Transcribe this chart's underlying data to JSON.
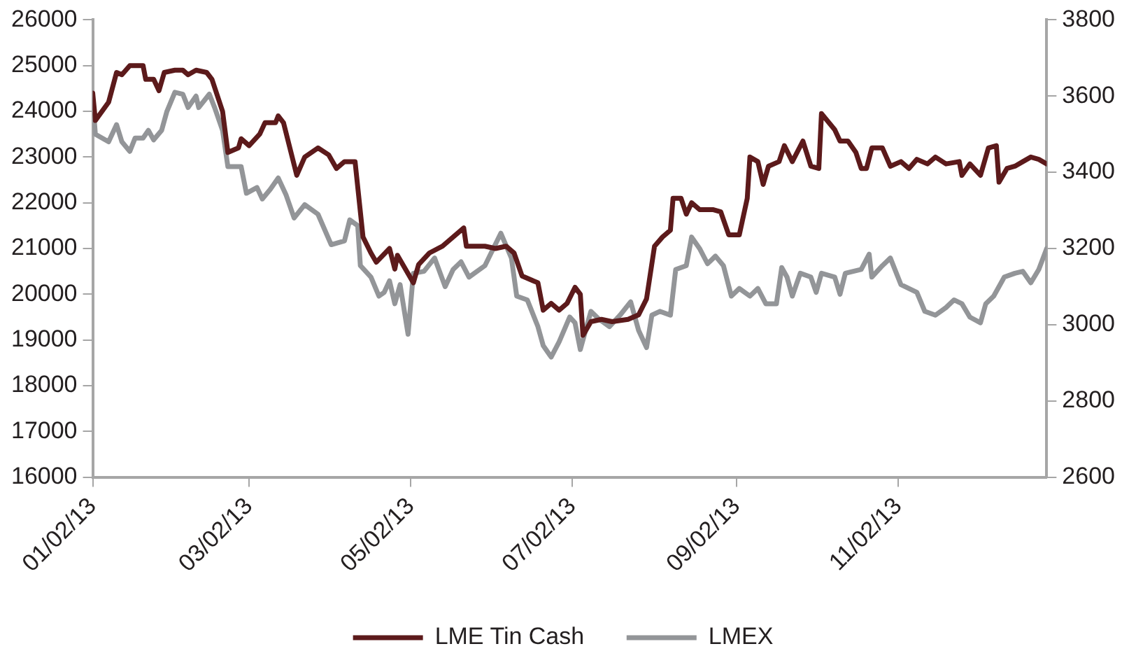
{
  "chart_data": {
    "type": "line",
    "xlim": [
      "2013-01-02",
      "2013-12-28"
    ],
    "xticks": [
      {
        "value": "2013-01-02",
        "label": "01/02/13"
      },
      {
        "value": "2013-03-02",
        "label": "03/02/13"
      },
      {
        "value": "2013-05-02",
        "label": "05/02/13"
      },
      {
        "value": "2013-07-02",
        "label": "07/02/13"
      },
      {
        "value": "2013-09-02",
        "label": "09/02/13"
      },
      {
        "value": "2013-11-02",
        "label": "11/02/13"
      }
    ],
    "ylim": [
      16000,
      26000
    ],
    "yticks": [
      16000,
      17000,
      18000,
      19000,
      20000,
      21000,
      22000,
      23000,
      24000,
      25000,
      26000
    ],
    "y2lim": [
      2600,
      3800
    ],
    "y2ticks": [
      2600,
      2800,
      3000,
      3200,
      3400,
      3600,
      3800
    ],
    "grid": false,
    "legend": "bottom",
    "marker": "none",
    "line_style": "solid",
    "series": [
      {
        "name": "LME Tin Cash",
        "color": "#5c1a1b",
        "x": [
          "2013-01-02",
          "2013-01-03",
          "2013-01-08",
          "2013-01-11",
          "2013-01-13",
          "2013-01-16",
          "2013-01-21",
          "2013-01-22",
          "2013-01-25",
          "2013-01-27",
          "2013-01-29",
          "2013-02-02",
          "2013-02-05",
          "2013-02-07",
          "2013-02-10",
          "2013-02-14",
          "2013-02-16",
          "2013-02-20",
          "2013-02-22",
          "2013-02-26",
          "2013-02-27",
          "2013-03-02",
          "2013-03-06",
          "2013-03-08",
          "2013-03-12",
          "2013-03-13",
          "2013-03-15",
          "2013-03-20",
          "2013-03-23",
          "2013-03-28",
          "2013-04-01",
          "2013-04-04",
          "2013-04-07",
          "2013-04-11",
          "2013-04-14",
          "2013-04-17",
          "2013-04-19",
          "2013-04-24",
          "2013-04-26",
          "2013-04-27",
          "2013-05-03",
          "2013-05-05",
          "2013-05-09",
          "2013-05-14",
          "2013-05-18",
          "2013-05-22",
          "2013-05-23",
          "2013-05-30",
          "2013-06-03",
          "2013-06-07",
          "2013-06-10",
          "2013-06-13",
          "2013-06-19",
          "2013-06-21",
          "2013-06-24",
          "2013-06-27",
          "2013-06-30",
          "2013-07-03",
          "2013-07-05",
          "2013-07-06",
          "2013-07-09",
          "2013-07-13",
          "2013-07-17",
          "2013-07-23",
          "2013-07-27",
          "2013-07-30",
          "2013-08-02",
          "2013-08-05",
          "2013-08-08",
          "2013-08-09",
          "2013-08-12",
          "2013-08-14",
          "2013-08-16",
          "2013-08-19",
          "2013-08-24",
          "2013-08-27",
          "2013-08-30",
          "2013-09-03",
          "2013-09-06",
          "2013-09-07",
          "2013-09-10",
          "2013-09-12",
          "2013-09-14",
          "2013-09-18",
          "2013-09-20",
          "2013-09-23",
          "2013-09-27",
          "2013-09-30",
          "2013-10-03",
          "2013-10-04",
          "2013-10-09",
          "2013-10-11",
          "2013-10-14",
          "2013-10-17",
          "2013-10-19",
          "2013-10-21",
          "2013-10-23",
          "2013-10-27",
          "2013-10-30",
          "2013-11-03",
          "2013-11-06",
          "2013-11-09",
          "2013-11-13",
          "2013-11-16",
          "2013-11-20",
          "2013-11-25",
          "2013-11-26",
          "2013-11-29",
          "2013-12-03",
          "2013-12-06",
          "2013-12-09",
          "2013-12-10",
          "2013-12-13",
          "2013-12-16",
          "2013-12-19",
          "2013-12-22",
          "2013-12-25",
          "2013-12-28"
        ],
        "values": [
          24400,
          23800,
          24200,
          24850,
          24800,
          25000,
          25000,
          24700,
          24700,
          24450,
          24850,
          24900,
          24900,
          24800,
          24900,
          24850,
          24700,
          24000,
          23100,
          23200,
          23400,
          23250,
          23500,
          23750,
          23750,
          23900,
          23750,
          22600,
          23000,
          23200,
          23050,
          22750,
          22900,
          22900,
          21250,
          20900,
          20700,
          21000,
          20550,
          20850,
          20250,
          20650,
          20900,
          21050,
          21250,
          21450,
          21050,
          21050,
          21000,
          21050,
          20900,
          20400,
          20250,
          19650,
          19800,
          19650,
          19800,
          20150,
          20000,
          19100,
          19400,
          19450,
          19400,
          19450,
          19550,
          19900,
          21050,
          21250,
          21400,
          22100,
          22100,
          21750,
          22000,
          21850,
          21850,
          21800,
          21300,
          21300,
          22100,
          23000,
          22900,
          22400,
          22800,
          22900,
          23250,
          22900,
          23350,
          22800,
          22750,
          23950,
          23600,
          23350,
          23350,
          23100,
          22750,
          22750,
          23200,
          23200,
          22800,
          22900,
          22750,
          22950,
          22850,
          23000,
          22850,
          22900,
          22600,
          22850,
          22600,
          23200,
          23250,
          22450,
          22750,
          22800,
          22900,
          23000,
          22950,
          22850
        ]
      },
      {
        "name": "LMEX",
        "color": "#939598",
        "axis": "y2",
        "x": [
          "2013-01-02",
          "2013-01-03",
          "2013-01-08",
          "2013-01-11",
          "2013-01-13",
          "2013-01-16",
          "2013-01-18",
          "2013-01-21",
          "2013-01-23",
          "2013-01-25",
          "2013-01-28",
          "2013-01-30",
          "2013-02-02",
          "2013-02-05",
          "2013-02-07",
          "2013-02-10",
          "2013-02-11",
          "2013-02-15",
          "2013-02-17",
          "2013-02-20",
          "2013-02-22",
          "2013-02-27",
          "2013-03-01",
          "2013-03-05",
          "2013-03-07",
          "2013-03-10",
          "2013-03-13",
          "2013-03-16",
          "2013-03-19",
          "2013-03-23",
          "2013-03-28",
          "2013-04-02",
          "2013-04-07",
          "2013-04-09",
          "2013-04-12",
          "2013-04-13",
          "2013-04-17",
          "2013-04-20",
          "2013-04-22",
          "2013-04-24",
          "2013-04-26",
          "2013-04-28",
          "2013-05-01",
          "2013-05-03",
          "2013-05-07",
          "2013-05-11",
          "2013-05-15",
          "2013-05-18",
          "2013-05-21",
          "2013-05-24",
          "2013-05-30",
          "2013-06-05",
          "2013-06-09",
          "2013-06-11",
          "2013-06-15",
          "2013-06-19",
          "2013-06-21",
          "2013-06-24",
          "2013-06-27",
          "2013-07-01",
          "2013-07-03",
          "2013-07-05",
          "2013-07-09",
          "2013-07-12",
          "2013-07-16",
          "2013-07-20",
          "2013-07-24",
          "2013-07-27",
          "2013-07-30",
          "2013-08-01",
          "2013-08-04",
          "2013-08-08",
          "2013-08-10",
          "2013-08-14",
          "2013-08-16",
          "2013-08-19",
          "2013-08-22",
          "2013-08-25",
          "2013-08-28",
          "2013-08-31",
          "2013-09-03",
          "2013-09-07",
          "2013-09-10",
          "2013-09-13",
          "2013-09-17",
          "2013-09-19",
          "2013-09-21",
          "2013-09-23",
          "2013-09-26",
          "2013-09-30",
          "2013-10-02",
          "2013-10-04",
          "2013-10-09",
          "2013-10-11",
          "2013-10-13",
          "2013-10-19",
          "2013-10-22",
          "2013-10-23",
          "2013-10-27",
          "2013-10-30",
          "2013-11-03",
          "2013-11-09",
          "2013-11-12",
          "2013-11-16",
          "2013-11-20",
          "2013-11-23",
          "2013-11-26",
          "2013-11-29",
          "2013-12-03",
          "2013-12-05",
          "2013-12-08",
          "2013-12-12",
          "2013-12-16",
          "2013-12-19",
          "2013-12-22",
          "2013-12-25",
          "2013-12-28"
        ],
        "values": [
          3590,
          3500,
          3480,
          3525,
          3480,
          3455,
          3490,
          3490,
          3510,
          3485,
          3510,
          3560,
          3610,
          3605,
          3570,
          3600,
          3570,
          3605,
          3570,
          3510,
          3415,
          3415,
          3345,
          3360,
          3330,
          3355,
          3385,
          3340,
          3280,
          3315,
          3290,
          3210,
          3220,
          3275,
          3260,
          3155,
          3125,
          3075,
          3085,
          3115,
          3055,
          3105,
          2975,
          3135,
          3140,
          3175,
          3100,
          3145,
          3165,
          3125,
          3155,
          3240,
          3175,
          3075,
          3065,
          2995,
          2945,
          2915,
          2955,
          3020,
          3005,
          2935,
          3035,
          3015,
          2995,
          3025,
          3060,
          2985,
          2940,
          3025,
          3035,
          3025,
          3145,
          3155,
          3230,
          3200,
          3160,
          3180,
          3155,
          3075,
          3095,
          3075,
          3095,
          3055,
          3055,
          3150,
          3125,
          3075,
          3135,
          3125,
          3085,
          3135,
          3125,
          3080,
          3135,
          3145,
          3185,
          3125,
          3155,
          3175,
          3105,
          3085,
          3035,
          3025,
          3045,
          3065,
          3055,
          3020,
          3005,
          3055,
          3075,
          3125,
          3135,
          3140,
          3110,
          3145,
          3200
        ]
      }
    ]
  }
}
